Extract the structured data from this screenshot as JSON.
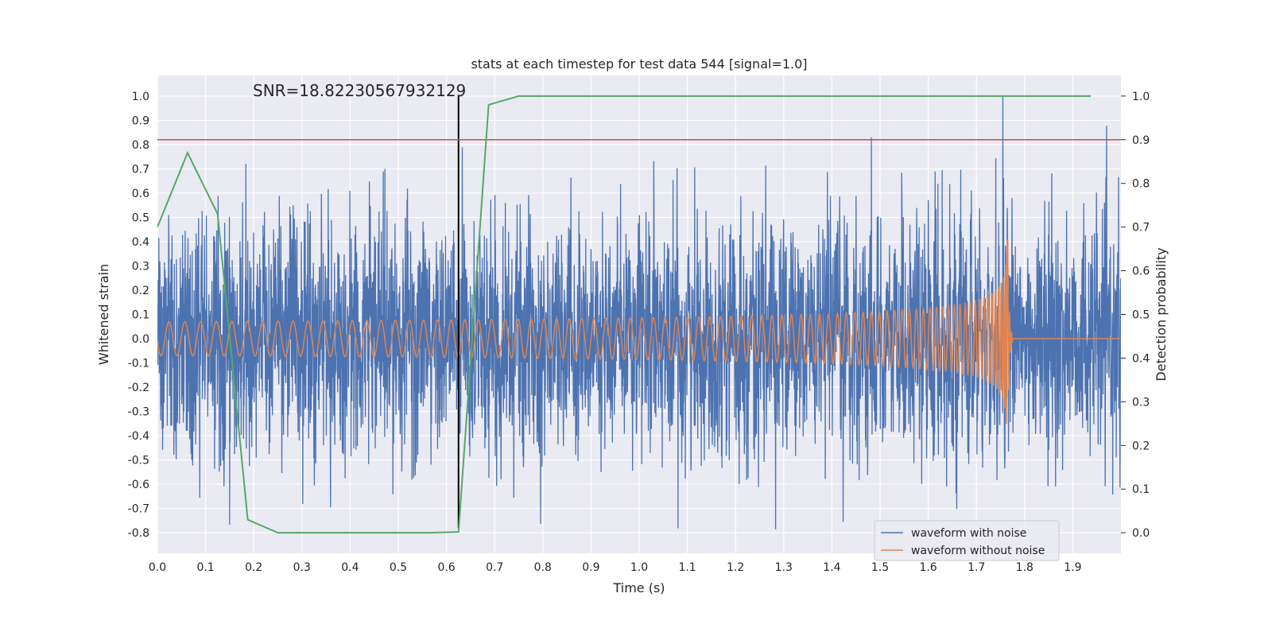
{
  "chart_data": {
    "type": "line",
    "title": "stats at each timestep for test data 544 [signal=1.0]",
    "xlabel": "Time (s)",
    "ylabel": "Whitened strain",
    "y2label": "Detection probability",
    "annotation": "SNR=18.82230567932129",
    "xlim": [
      0.0,
      2.0
    ],
    "ylim": [
      -0.885,
      1.085
    ],
    "y2lim": [
      -0.047,
      1.047
    ],
    "x_ticks": [
      "0.0",
      "0.1",
      "0.2",
      "0.3",
      "0.4",
      "0.5",
      "0.6",
      "0.7",
      "0.8",
      "0.9",
      "1.0",
      "1.1",
      "1.2",
      "1.3",
      "1.4",
      "1.5",
      "1.6",
      "1.7",
      "1.8",
      "1.9"
    ],
    "y_ticks": [
      "1.0",
      "0.9",
      "0.8",
      "0.7",
      "0.6",
      "0.5",
      "0.4",
      "0.3",
      "0.2",
      "0.1",
      "0.0",
      "-0.1",
      "-0.2",
      "-0.3",
      "-0.4",
      "-0.5",
      "-0.6",
      "-0.7",
      "-0.8"
    ],
    "y2_ticks": [
      "1.0",
      "0.9",
      "0.8",
      "0.7",
      "0.6",
      "0.5",
      "0.4",
      "0.3",
      "0.2",
      "0.1",
      "0.0"
    ],
    "grid": true,
    "legend_position": "bottom-right",
    "colors": {
      "noisy": "#4c72b0",
      "clean": "#dd8452",
      "probability": "#55a868",
      "threshold": "#c44e52",
      "marker": "#000000",
      "background": "#eaeaf2"
    },
    "series": [
      {
        "name": "waveform with noise",
        "kind": "noise-strain",
        "sample_rate_hz": 2048,
        "duration_s": 2.0,
        "typical_amplitude": 0.27,
        "peak": {
          "x": 1.755,
          "y": 1.0
        }
      },
      {
        "name": "waveform without noise",
        "kind": "chirp",
        "start_freq_hz": 30,
        "merger_time_s": 1.765,
        "amplitude_start": 0.07,
        "amplitude_peak": 0.43,
        "ringdown_end_s": 1.775
      },
      {
        "name": "",
        "kind": "detection-probability",
        "axis": "right",
        "x": [
          0.0,
          0.0625,
          0.125,
          0.1875,
          0.25,
          0.3125,
          0.375,
          0.4375,
          0.5,
          0.5625,
          0.625,
          0.6875,
          0.75,
          0.8125,
          0.875,
          0.9375,
          1.0,
          1.0625,
          1.125,
          1.1875,
          1.25,
          1.3125,
          1.375,
          1.4375,
          1.5,
          1.5625,
          1.625,
          1.6875,
          1.75,
          1.8125,
          1.875,
          1.9375
        ],
        "y": [
          0.7,
          0.87,
          0.73,
          0.03,
          0.0,
          0.0,
          0.0,
          0.0,
          0.0,
          0.0,
          0.002,
          0.98,
          1.0,
          1.0,
          1.0,
          1.0,
          1.0,
          1.0,
          1.0,
          1.0,
          1.0,
          1.0,
          1.0,
          1.0,
          1.0,
          1.0,
          1.0,
          1.0,
          1.0,
          1.0,
          1.0,
          1.0
        ]
      }
    ],
    "threshold_line": {
      "axis": "right",
      "y": 0.9
    },
    "vertical_marker": {
      "x": 0.625,
      "y_from": -0.78,
      "y_to": 1.0
    }
  }
}
